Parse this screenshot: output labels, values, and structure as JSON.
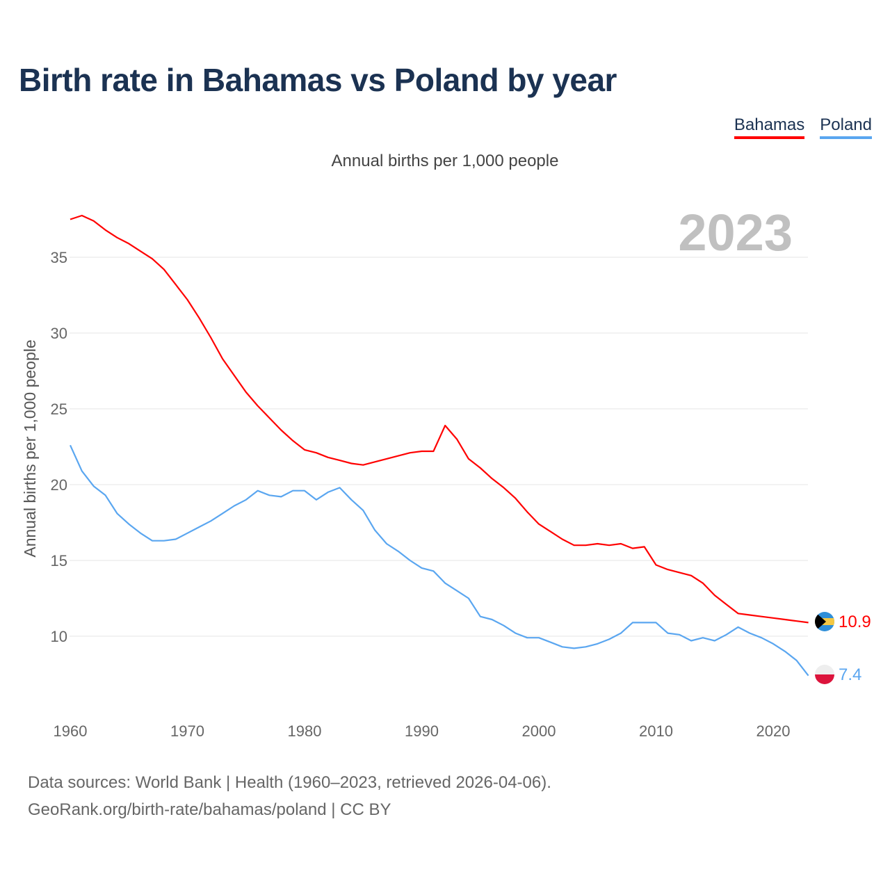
{
  "title": "Birth rate in Bahamas vs Poland by year",
  "legend": [
    "Bahamas",
    "Poland"
  ],
  "footer": {
    "line1": "Data sources: World Bank | Health (1960–2023, retrieved 2026-04-06).",
    "line2": "GeoRank.org/birth-rate/bahamas/poland | CC BY"
  },
  "chart_data": {
    "type": "line",
    "title": "Birth rate in Bahamas vs Poland by year",
    "subtitle": "Annual births per 1,000 people",
    "ylabel": "Annual births per 1,000 people",
    "xlabel": "",
    "year_label": "2023",
    "xlim": [
      1960,
      2023
    ],
    "ylim": [
      5.2,
      38
    ],
    "yticks": [
      10,
      15,
      20,
      25,
      30,
      35
    ],
    "xticks": [
      1960,
      1970,
      1980,
      1990,
      2000,
      2010,
      2020
    ],
    "grid": true,
    "legend_position": "top-right",
    "x_start": 1960,
    "series": [
      {
        "name": "Bahamas",
        "color": "#ff0000",
        "end_label": "10.9",
        "values": [
          37.5,
          37.75,
          37.4,
          36.8,
          36.3,
          35.9,
          35.4,
          34.9,
          34.2,
          33.2,
          32.2,
          31.0,
          29.7,
          28.3,
          27.2,
          26.1,
          25.2,
          24.4,
          23.6,
          22.9,
          22.3,
          22.1,
          21.8,
          21.6,
          21.4,
          21.3,
          21.5,
          21.7,
          21.9,
          22.1,
          22.2,
          22.2,
          23.9,
          23.0,
          21.7,
          21.1,
          20.4,
          19.8,
          19.1,
          18.2,
          17.4,
          16.9,
          16.4,
          16.0,
          16.0,
          16.1,
          16.0,
          16.1,
          15.8,
          15.9,
          14.7,
          14.4,
          14.2,
          14.0,
          13.5,
          12.7,
          12.1,
          11.5,
          11.4,
          11.3,
          11.2,
          11.1,
          11.0,
          10.9
        ]
      },
      {
        "name": "Poland",
        "color": "#5aa6f0",
        "end_label": "7.4",
        "values": [
          22.6,
          20.9,
          19.9,
          19.3,
          18.1,
          17.4,
          16.8,
          16.3,
          16.3,
          16.4,
          16.8,
          17.2,
          17.6,
          18.1,
          18.6,
          19.0,
          19.6,
          19.3,
          19.2,
          19.6,
          19.6,
          19.0,
          19.5,
          19.8,
          19.0,
          18.3,
          17.0,
          16.1,
          15.6,
          15.0,
          14.5,
          14.3,
          13.5,
          13.0,
          12.5,
          11.3,
          11.1,
          10.7,
          10.2,
          9.9,
          9.9,
          9.6,
          9.3,
          9.2,
          9.3,
          9.5,
          9.8,
          10.2,
          10.9,
          10.9,
          10.9,
          10.2,
          10.1,
          9.7,
          9.9,
          9.7,
          10.1,
          10.6,
          10.2,
          9.9,
          9.5,
          9.0,
          8.4,
          7.4
        ]
      }
    ]
  }
}
